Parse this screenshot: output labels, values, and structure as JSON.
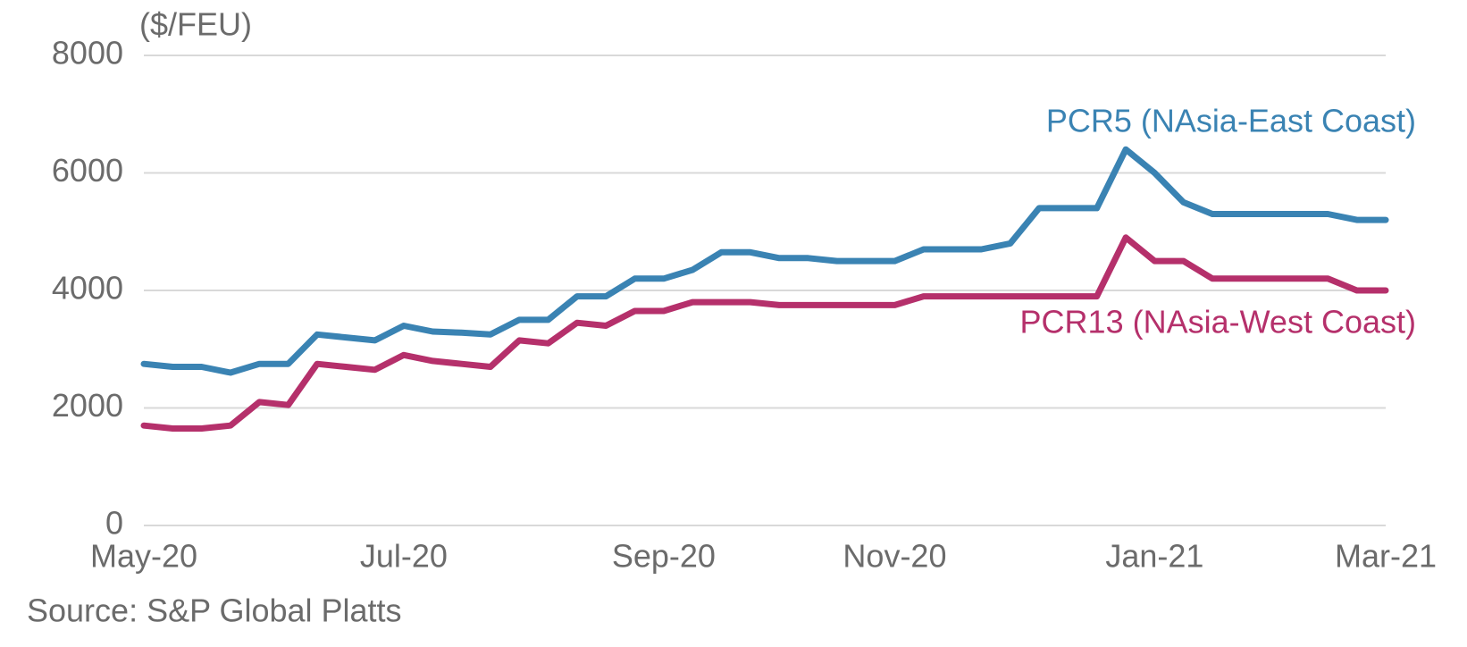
{
  "chart_data": {
    "type": "line",
    "unit_label": "($/FEU)",
    "source": "Source: S&P Global Platts",
    "categories": [
      "May-20",
      null,
      null,
      null,
      null,
      null,
      null,
      null,
      null,
      "Jul-20",
      null,
      null,
      null,
      null,
      null,
      null,
      null,
      null,
      "Sep-20",
      null,
      null,
      null,
      null,
      null,
      null,
      null,
      "Nov-20",
      null,
      null,
      null,
      null,
      null,
      null,
      null,
      null,
      "Jan-21",
      null,
      null,
      null,
      null,
      null,
      null,
      null,
      "Mar-21"
    ],
    "series": [
      {
        "name": "PCR5 (NAsia-East Coast)",
        "color": "#3a83b3",
        "values": [
          2750,
          2700,
          2700,
          2600,
          2750,
          2750,
          3250,
          3200,
          3150,
          3400,
          3300,
          3280,
          3250,
          3500,
          3500,
          3900,
          3900,
          4200,
          4200,
          4350,
          4650,
          4650,
          4550,
          4550,
          4500,
          4500,
          4500,
          4700,
          4700,
          4700,
          4800,
          5400,
          5400,
          5400,
          6400,
          6000,
          5500,
          5300,
          5300,
          5300,
          5300,
          5300,
          5200,
          5200
        ]
      },
      {
        "name": "PCR13 (NAsia-West Coast)",
        "color": "#b5306b",
        "values": [
          1700,
          1650,
          1650,
          1700,
          2100,
          2050,
          2750,
          2700,
          2650,
          2900,
          2800,
          2750,
          2700,
          3150,
          3100,
          3450,
          3400,
          3650,
          3650,
          3800,
          3800,
          3800,
          3750,
          3750,
          3750,
          3750,
          3750,
          3900,
          3900,
          3900,
          3900,
          3900,
          3900,
          3900,
          4900,
          4500,
          4500,
          4200,
          4200,
          4200,
          4200,
          4200,
          4000,
          4000
        ]
      }
    ],
    "ylim": [
      0,
      8000
    ],
    "yticks": [
      0,
      2000,
      4000,
      6000,
      8000
    ],
    "grid": true
  }
}
